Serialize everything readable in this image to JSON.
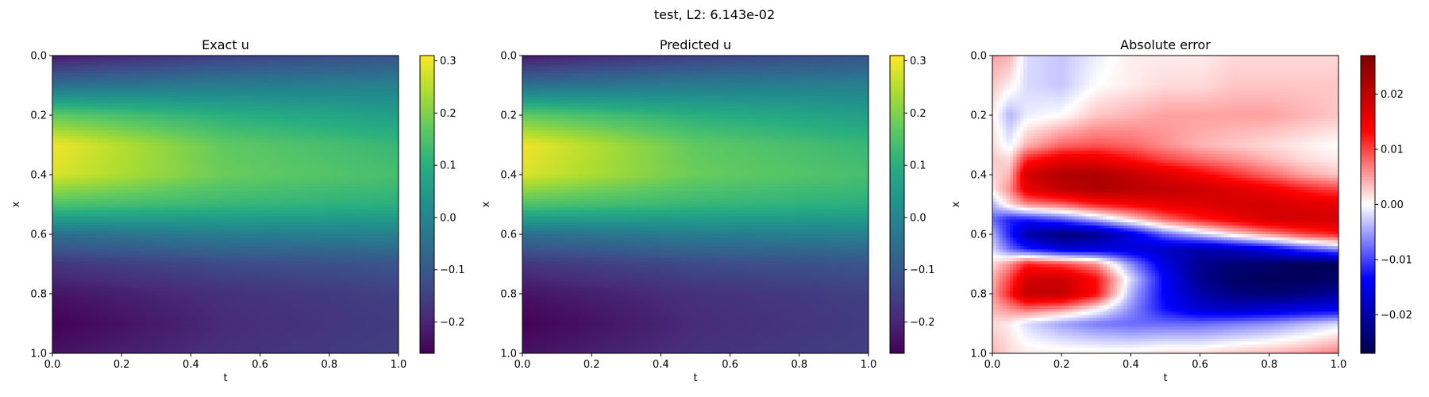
{
  "figure": {
    "suptitle": "test, L2: 6.143e-02"
  },
  "chart_data": [
    {
      "type": "heatmap",
      "title": "Exact u",
      "xlabel": "t",
      "ylabel": "x",
      "xlim": [
        0.0,
        1.0
      ],
      "ylim": [
        1.0,
        0.0
      ],
      "x_ticks": [
        "0.0",
        "0.2",
        "0.4",
        "0.6",
        "0.8",
        "1.0"
      ],
      "y_ticks": [
        "0.0",
        "0.2",
        "0.4",
        "0.6",
        "0.8",
        "1.0"
      ],
      "colormap": "viridis",
      "value_range": [
        -0.26,
        0.31
      ],
      "colorbar_ticks": [
        {
          "value": 0.3,
          "label": "0.3"
        },
        {
          "value": 0.2,
          "label": "0.2"
        },
        {
          "value": 0.1,
          "label": "0.1"
        },
        {
          "value": 0.0,
          "label": "0.0"
        },
        {
          "value": -0.1,
          "label": "−0.1"
        },
        {
          "value": -0.2,
          "label": "−0.2"
        }
      ],
      "field": {
        "x_grid": [
          0.0,
          0.1,
          0.2,
          0.3,
          0.4,
          0.5,
          0.6,
          0.7,
          0.8,
          0.9,
          1.0
        ],
        "t_grid": [
          0.0,
          0.5,
          1.0
        ],
        "values": [
          [
            -0.22,
            -0.15,
            -0.11
          ],
          [
            -0.05,
            -0.02,
            -0.01
          ],
          [
            0.17,
            0.1,
            0.06
          ],
          [
            0.3,
            0.17,
            0.12
          ],
          [
            0.28,
            0.18,
            0.14
          ],
          [
            0.15,
            0.12,
            0.1
          ],
          [
            -0.05,
            -0.02,
            -0.01
          ],
          [
            -0.17,
            -0.13,
            -0.11
          ],
          [
            -0.23,
            -0.18,
            -0.15
          ],
          [
            -0.26,
            -0.19,
            -0.16
          ],
          [
            -0.23,
            -0.18,
            -0.15
          ]
        ]
      }
    },
    {
      "type": "heatmap",
      "title": "Predicted u",
      "xlabel": "t",
      "ylabel": "x",
      "xlim": [
        0.0,
        1.0
      ],
      "ylim": [
        1.0,
        0.0
      ],
      "x_ticks": [
        "0.0",
        "0.2",
        "0.4",
        "0.6",
        "0.8",
        "1.0"
      ],
      "y_ticks": [
        "0.0",
        "0.2",
        "0.4",
        "0.6",
        "0.8",
        "1.0"
      ],
      "colormap": "viridis",
      "value_range": [
        -0.26,
        0.31
      ],
      "colorbar_ticks": [
        {
          "value": 0.3,
          "label": "0.3"
        },
        {
          "value": 0.2,
          "label": "0.2"
        },
        {
          "value": 0.1,
          "label": "0.1"
        },
        {
          "value": 0.0,
          "label": "0.0"
        },
        {
          "value": -0.1,
          "label": "−0.1"
        },
        {
          "value": -0.2,
          "label": "−0.2"
        }
      ],
      "field": {
        "x_grid": [
          0.0,
          0.1,
          0.2,
          0.3,
          0.4,
          0.5,
          0.6,
          0.7,
          0.8,
          0.9,
          1.0
        ],
        "t_grid": [
          0.0,
          0.5,
          1.0
        ],
        "values": [
          [
            -0.22,
            -0.15,
            -0.11
          ],
          [
            -0.05,
            -0.02,
            -0.01
          ],
          [
            0.17,
            0.1,
            0.06
          ],
          [
            0.3,
            0.17,
            0.12
          ],
          [
            0.28,
            0.18,
            0.14
          ],
          [
            0.15,
            0.12,
            0.1
          ],
          [
            -0.05,
            -0.02,
            -0.01
          ],
          [
            -0.17,
            -0.13,
            -0.11
          ],
          [
            -0.23,
            -0.18,
            -0.15
          ],
          [
            -0.26,
            -0.19,
            -0.16
          ],
          [
            -0.23,
            -0.18,
            -0.15
          ]
        ]
      }
    },
    {
      "type": "heatmap",
      "title": "Absolute error",
      "xlabel": "t",
      "ylabel": "x",
      "xlim": [
        0.0,
        1.0
      ],
      "ylim": [
        1.0,
        0.0
      ],
      "x_ticks": [
        "0.0",
        "0.2",
        "0.4",
        "0.6",
        "0.8",
        "1.0"
      ],
      "y_ticks": [
        "0.0",
        "0.2",
        "0.4",
        "0.6",
        "0.8",
        "1.0"
      ],
      "colormap": "seismic",
      "value_range": [
        -0.027,
        0.027
      ],
      "colorbar_ticks": [
        {
          "value": 0.02,
          "label": "0.02"
        },
        {
          "value": 0.01,
          "label": "0.01"
        },
        {
          "value": 0.0,
          "label": "0.00"
        },
        {
          "value": -0.01,
          "label": "−0.01"
        },
        {
          "value": -0.02,
          "label": "−0.02"
        }
      ],
      "field": {
        "x_grid": [
          0.0,
          0.1,
          0.2,
          0.3,
          0.35,
          0.4,
          0.45,
          0.5,
          0.55,
          0.6,
          0.65,
          0.7,
          0.75,
          0.8,
          0.85,
          0.9,
          1.0
        ],
        "t_grid": [
          0.0,
          0.05,
          0.1,
          0.2,
          0.3,
          0.4,
          0.5,
          0.6,
          0.7,
          0.8,
          0.9,
          1.0
        ],
        "values": [
          [
            0.005,
            0.004,
            -0.002,
            -0.003,
            -0.001,
            0.001,
            0.001,
            0.001,
            0.002,
            0.002,
            0.002,
            0.002
          ],
          [
            0.003,
            0.001,
            -0.002,
            -0.003,
            0.0,
            0.001,
            0.002,
            0.002,
            0.003,
            0.003,
            0.003,
            0.003
          ],
          [
            0.001,
            -0.004,
            -0.001,
            0.0,
            0.003,
            0.004,
            0.005,
            0.005,
            0.005,
            0.005,
            0.004,
            0.003
          ],
          [
            0.002,
            -0.001,
            0.004,
            0.008,
            0.009,
            0.008,
            0.006,
            0.004,
            0.003,
            0.002,
            0.001,
            0.0
          ],
          [
            0.003,
            0.002,
            0.012,
            0.016,
            0.016,
            0.013,
            0.01,
            0.008,
            0.006,
            0.004,
            0.002,
            0.001
          ],
          [
            0.002,
            0.004,
            0.018,
            0.022,
            0.022,
            0.02,
            0.017,
            0.014,
            0.011,
            0.008,
            0.005,
            0.003
          ],
          [
            0.001,
            0.006,
            0.016,
            0.02,
            0.022,
            0.021,
            0.02,
            0.019,
            0.017,
            0.015,
            0.012,
            0.01
          ],
          [
            -0.004,
            0.002,
            0.006,
            0.008,
            0.012,
            0.014,
            0.016,
            0.017,
            0.018,
            0.018,
            0.017,
            0.016
          ],
          [
            -0.008,
            -0.012,
            -0.012,
            -0.009,
            -0.004,
            0.002,
            0.008,
            0.012,
            0.015,
            0.018,
            0.018,
            0.018
          ],
          [
            -0.004,
            -0.012,
            -0.02,
            -0.024,
            -0.022,
            -0.016,
            -0.008,
            -0.003,
            0.002,
            0.006,
            0.01,
            0.012
          ],
          [
            -0.002,
            -0.008,
            -0.012,
            -0.016,
            -0.016,
            -0.016,
            -0.018,
            -0.02,
            -0.018,
            -0.015,
            -0.01,
            -0.006
          ],
          [
            0.002,
            0.006,
            0.012,
            0.01,
            0.006,
            -0.006,
            -0.016,
            -0.022,
            -0.024,
            -0.025,
            -0.026,
            -0.026
          ],
          [
            0.004,
            0.01,
            0.018,
            0.019,
            0.013,
            -0.002,
            -0.014,
            -0.022,
            -0.025,
            -0.026,
            -0.026,
            -0.025
          ],
          [
            0.005,
            0.012,
            0.02,
            0.02,
            0.013,
            -0.004,
            -0.014,
            -0.02,
            -0.023,
            -0.024,
            -0.023,
            -0.021
          ],
          [
            0.004,
            0.006,
            0.008,
            0.006,
            0.001,
            -0.006,
            -0.013,
            -0.017,
            -0.018,
            -0.017,
            -0.016,
            -0.015
          ],
          [
            0.002,
            0.001,
            -0.002,
            -0.005,
            -0.007,
            -0.008,
            -0.008,
            -0.008,
            -0.007,
            -0.006,
            -0.004,
            -0.002
          ],
          [
            0.004,
            0.002,
            0.001,
            0.001,
            0.001,
            0.001,
            0.002,
            0.002,
            0.003,
            0.004,
            0.005,
            0.007
          ]
        ]
      }
    }
  ]
}
